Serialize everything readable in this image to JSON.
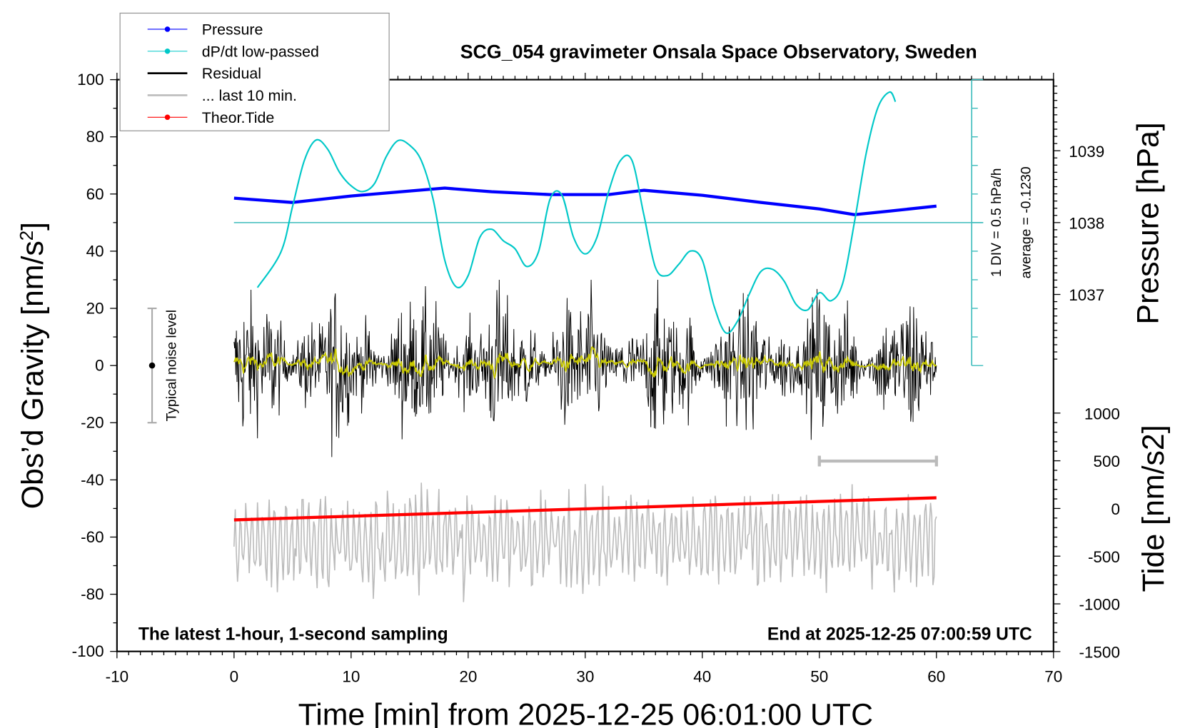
{
  "chart_data": {
    "type": "line",
    "title": "SCG_054 gravimeter Onsala Space Observatory, Sweden",
    "xlabel": "Time [min] from 2025-12-25 06:01:00 UTC",
    "ylabel_left": "Obs'd Gravity [nm/s2]",
    "ylabel_right_top": "Pressure [hPa]",
    "ylabel_right_bottom": "Tide [nm/s2]",
    "xlim": [
      -10,
      70
    ],
    "ylim_left": [
      -100,
      100
    ],
    "x_ticks": [
      "-10",
      "0",
      "10",
      "20",
      "30",
      "40",
      "50",
      "60",
      "70"
    ],
    "y_left_ticks": [
      "100",
      "80",
      "60",
      "40",
      "20",
      "0",
      "-20",
      "-40",
      "-60",
      "-80",
      "-100"
    ],
    "pressure_ticks": [
      "1039",
      "1038",
      "1037"
    ],
    "tide_ticks": [
      "1000",
      "500",
      "0",
      "-500",
      "-1000",
      "-1500"
    ],
    "legend_placement": "top-left",
    "legend": [
      {
        "label": "Pressure",
        "color": "#0000ff",
        "marker": true
      },
      {
        "label": "dP/dt low-passed",
        "color": "#00c8c8",
        "marker": true
      },
      {
        "label": "Residual",
        "color": "#000000",
        "marker": false
      },
      {
        "label": "... last 10 min.",
        "color": "#bbbbbb",
        "marker": false
      },
      {
        "label": "Theor.Tide",
        "color": "#ff0000",
        "marker": true
      }
    ],
    "dpdt_scale_label": "1 DIV = 0.5 hPa/h",
    "dpdt_average_label": "average = -0.1230",
    "noise_label": "Typical noise level",
    "noise_level_range": [
      -20,
      20
    ],
    "bottom_left_note": "The latest 1-hour, 1-second sampling",
    "bottom_right_note": "End at 2025-12-25 07:00:59 UTC",
    "series": [
      {
        "name": "Pressure",
        "unit": "hPa",
        "color": "#0000ff",
        "x": [
          0,
          5,
          10,
          15,
          18,
          22,
          27,
          32,
          35,
          40,
          45,
          50,
          53,
          56,
          60
        ],
        "y": [
          1038.34,
          1038.28,
          1038.37,
          1038.44,
          1038.48,
          1038.43,
          1038.39,
          1038.39,
          1038.45,
          1038.38,
          1038.28,
          1038.19,
          1038.11,
          1038.16,
          1038.23
        ]
      },
      {
        "name": "dP/dt low-passed",
        "unit": "hPa/h",
        "color": "#00c8c8",
        "x": [
          2,
          4,
          5,
          6,
          7,
          8,
          9,
          10,
          11,
          12,
          13,
          14,
          15,
          16,
          17,
          18,
          19,
          20,
          21,
          22,
          23,
          24,
          25,
          26,
          27,
          28,
          29,
          30,
          31,
          32,
          33,
          34,
          35,
          36,
          37,
          38,
          39,
          40,
          41,
          42,
          43,
          44,
          45,
          46,
          47,
          48,
          49,
          50,
          51,
          52,
          53,
          54,
          55,
          56,
          56.5
        ],
        "y": [
          -1.26,
          -0.64,
          0.16,
          0.96,
          1.32,
          1.16,
          0.76,
          0.52,
          0.42,
          0.56,
          1.03,
          1.31,
          1.23,
          0.96,
          0.29,
          -0.78,
          -1.25,
          -1.05,
          -0.38,
          -0.24,
          -0.44,
          -0.58,
          -0.89,
          -0.64,
          0.29,
          0.36,
          -0.38,
          -0.67,
          -0.38,
          0.42,
          0.96,
          0.96,
          0.02,
          -0.91,
          -1.05,
          -0.85,
          -0.62,
          -0.78,
          -1.58,
          -2.05,
          -1.85,
          -1.38,
          -0.98,
          -0.94,
          -1.15,
          -1.55,
          -1.65,
          -1.35,
          -1.49,
          -1.18,
          -0.11,
          1.09,
          1.89,
          2.16,
          1.99
        ]
      },
      {
        "name": "Theor.Tide",
        "unit": "nm/s2",
        "color": "#ff0000",
        "x": [
          0,
          60
        ],
        "y": [
          -120,
          112
        ]
      }
    ],
    "residual": {
      "color": "#000000",
      "mean_color": "#c8c800",
      "x_range": [
        0,
        60
      ],
      "typical_amplitude": 15
    },
    "last_10_min": {
      "color": "#bbbbbb",
      "x_range": [
        50,
        60
      ]
    }
  }
}
